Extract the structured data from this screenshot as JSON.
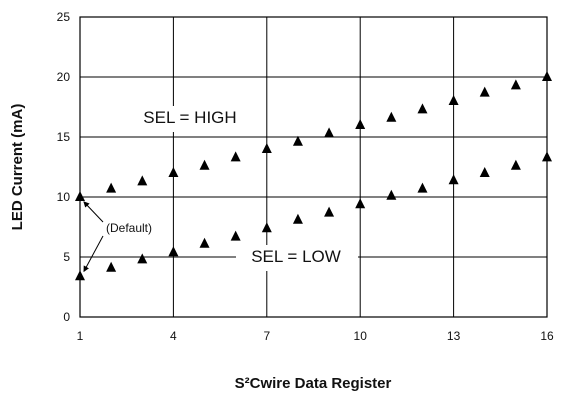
{
  "chart_data": {
    "type": "scatter",
    "xlabel": "S²Cwire Data Register",
    "ylabel": "LED Current (mA)",
    "xlim": [
      1,
      16
    ],
    "ylim": [
      0,
      25
    ],
    "x_ticks": [
      1,
      4,
      7,
      10,
      13,
      16
    ],
    "y_ticks": [
      0,
      5,
      10,
      15,
      20,
      25
    ],
    "grid": true,
    "marker": "triangle",
    "series": [
      {
        "name": "SEL = HIGH",
        "x": [
          1,
          2,
          3,
          4,
          5,
          6,
          7,
          8,
          9,
          10,
          11,
          12,
          13,
          14,
          15,
          16
        ],
        "values": [
          10.0,
          10.7,
          11.3,
          12.0,
          12.6,
          13.3,
          14.0,
          14.6,
          15.3,
          16.0,
          16.6,
          17.3,
          18.0,
          18.7,
          19.3,
          20.0
        ]
      },
      {
        "name": "SEL = LOW",
        "x": [
          1,
          2,
          3,
          4,
          5,
          6,
          7,
          8,
          9,
          10,
          11,
          12,
          13,
          14,
          15,
          16
        ],
        "values": [
          3.4,
          4.1,
          4.8,
          5.4,
          6.1,
          6.7,
          7.4,
          8.1,
          8.7,
          9.4,
          10.1,
          10.7,
          11.4,
          12.0,
          12.6,
          13.3
        ]
      }
    ],
    "annotations": [
      {
        "text": "(Default)",
        "points": [
          [
            1,
            10.0
          ],
          [
            1,
            3.4
          ]
        ]
      }
    ]
  }
}
